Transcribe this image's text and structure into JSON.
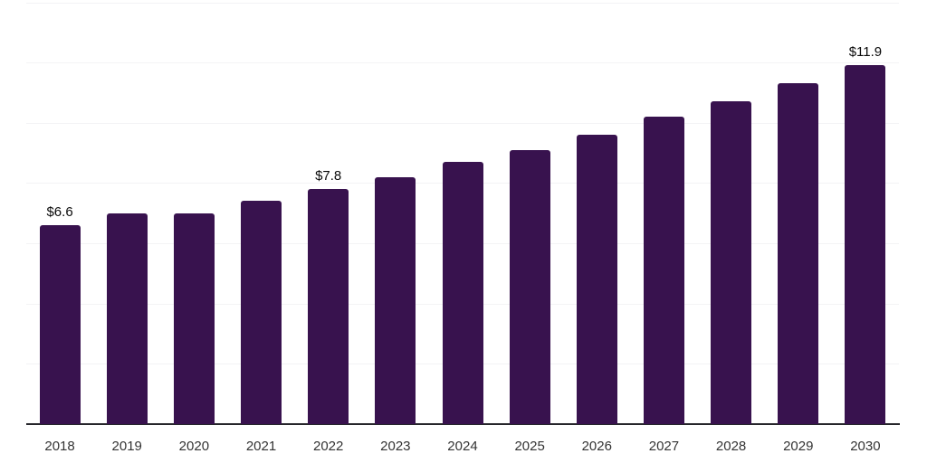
{
  "chart_data": {
    "type": "bar",
    "title": "",
    "xlabel": "",
    "ylabel": "",
    "categories": [
      "2018",
      "2019",
      "2020",
      "2021",
      "2022",
      "2023",
      "2024",
      "2025",
      "2026",
      "2027",
      "2028",
      "2029",
      "2030"
    ],
    "values": [
      6.6,
      7.0,
      7.0,
      7.4,
      7.8,
      8.2,
      8.7,
      9.1,
      9.6,
      10.2,
      10.7,
      11.3,
      11.9
    ],
    "value_labels": [
      {
        "category": "2018",
        "text": "$6.6"
      },
      {
        "category": "2022",
        "text": "$7.8"
      },
      {
        "category": "2030",
        "text": "$11.9"
      }
    ],
    "ylim": [
      0,
      14
    ],
    "gridline_step": 2,
    "grid": true,
    "legend": false,
    "y_axis_tick_labels_visible": false
  },
  "colors": {
    "background": "#ffffff",
    "bar": "#38124E",
    "axis_line": "#26262b",
    "gridline": "#f3f3f5",
    "tick_label": "#333333",
    "value_label": "#0a0a0a"
  }
}
